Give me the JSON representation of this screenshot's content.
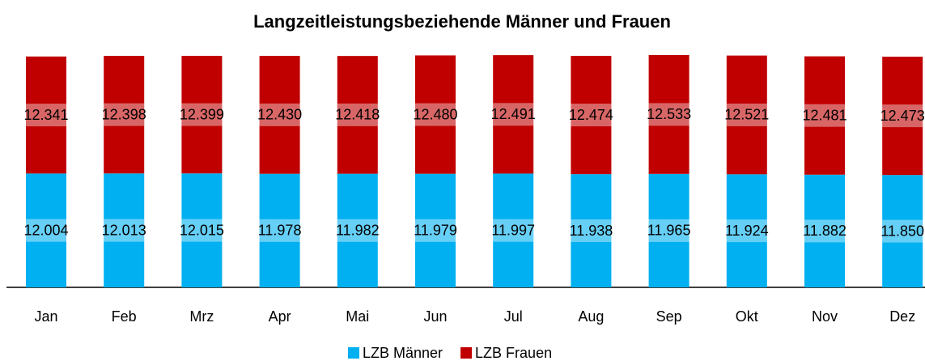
{
  "chart_data": {
    "type": "stacked_bar",
    "title": "Langzeitleistungsbeziehende Männer und Frauen",
    "categories": [
      "Jan",
      "Feb",
      "Mrz",
      "Apr",
      "Mai",
      "Jun",
      "Jul",
      "Aug",
      "Sep",
      "Okt",
      "Nov",
      "Dez"
    ],
    "series": [
      {
        "name": "LZB Männer",
        "color": "#00b0f0",
        "values": [
          12004,
          12013,
          12015,
          11978,
          11982,
          11979,
          11997,
          11938,
          11965,
          11924,
          11882,
          11850
        ],
        "value_labels": [
          "12.004",
          "12.013",
          "12.015",
          "11.978",
          "11.982",
          "11.979",
          "11.997",
          "11.938",
          "11.965",
          "11.924",
          "11.882",
          "11.850"
        ]
      },
      {
        "name": "LZB Frauen",
        "color": "#c00000",
        "values": [
          12341,
          12398,
          12399,
          12430,
          12418,
          12480,
          12491,
          12474,
          12533,
          12521,
          12481,
          12473
        ],
        "value_labels": [
          "12.341",
          "12.398",
          "12.399",
          "12.430",
          "12.418",
          "12.480",
          "12.491",
          "12.474",
          "12.533",
          "12.521",
          "12.481",
          "12.473"
        ]
      }
    ],
    "legend": "bottom"
  }
}
